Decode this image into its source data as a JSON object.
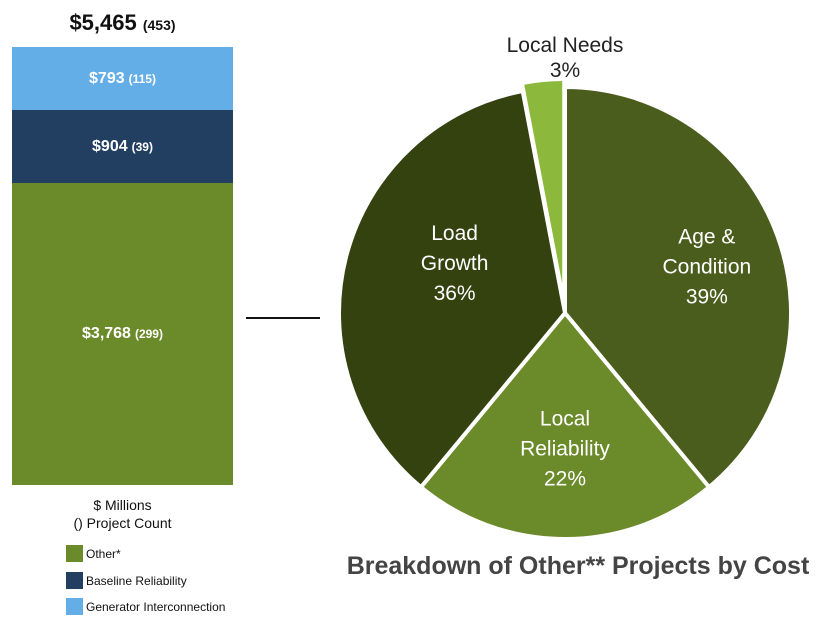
{
  "chart_data": [
    {
      "type": "bar",
      "stacked": true,
      "total": {
        "value": "$5,465",
        "count": "(453)"
      },
      "units": [
        "$ Millions",
        "() Project Count"
      ],
      "segments": [
        {
          "name": "Generator Interconnection",
          "value": 793,
          "label": "$793",
          "count": "(115)",
          "color": "#64aee8"
        },
        {
          "name": "Baseline Reliability",
          "value": 904,
          "label": "$904",
          "count": "(39)",
          "color": "#223f62"
        },
        {
          "name": "Other*",
          "value": 3768,
          "label": "$3,768",
          "count": "(299)",
          "color": "#6b8a29"
        }
      ],
      "legend": [
        {
          "label": "Other*",
          "color": "#6b8a29"
        },
        {
          "label": "Baseline Reliability",
          "color": "#223f62"
        },
        {
          "label": "Generator Interconnection",
          "color": "#64aee8"
        }
      ]
    },
    {
      "type": "pie",
      "title": "Breakdown of Other** Projects by Cost",
      "slices": [
        {
          "name": [
            "Age &",
            "Condition"
          ],
          "value": 39,
          "pct": "39%",
          "color": "#4a5d1d"
        },
        {
          "name": [
            "Local",
            "Reliability"
          ],
          "value": 22,
          "pct": "22%",
          "color": "#6b8b2b"
        },
        {
          "name": [
            "Load",
            "Growth"
          ],
          "value": 36,
          "pct": "36%",
          "color": "#33420f"
        },
        {
          "name": [
            "Local Needs"
          ],
          "value": 3,
          "pct": "3%",
          "color": "#8cb83b"
        }
      ]
    }
  ]
}
